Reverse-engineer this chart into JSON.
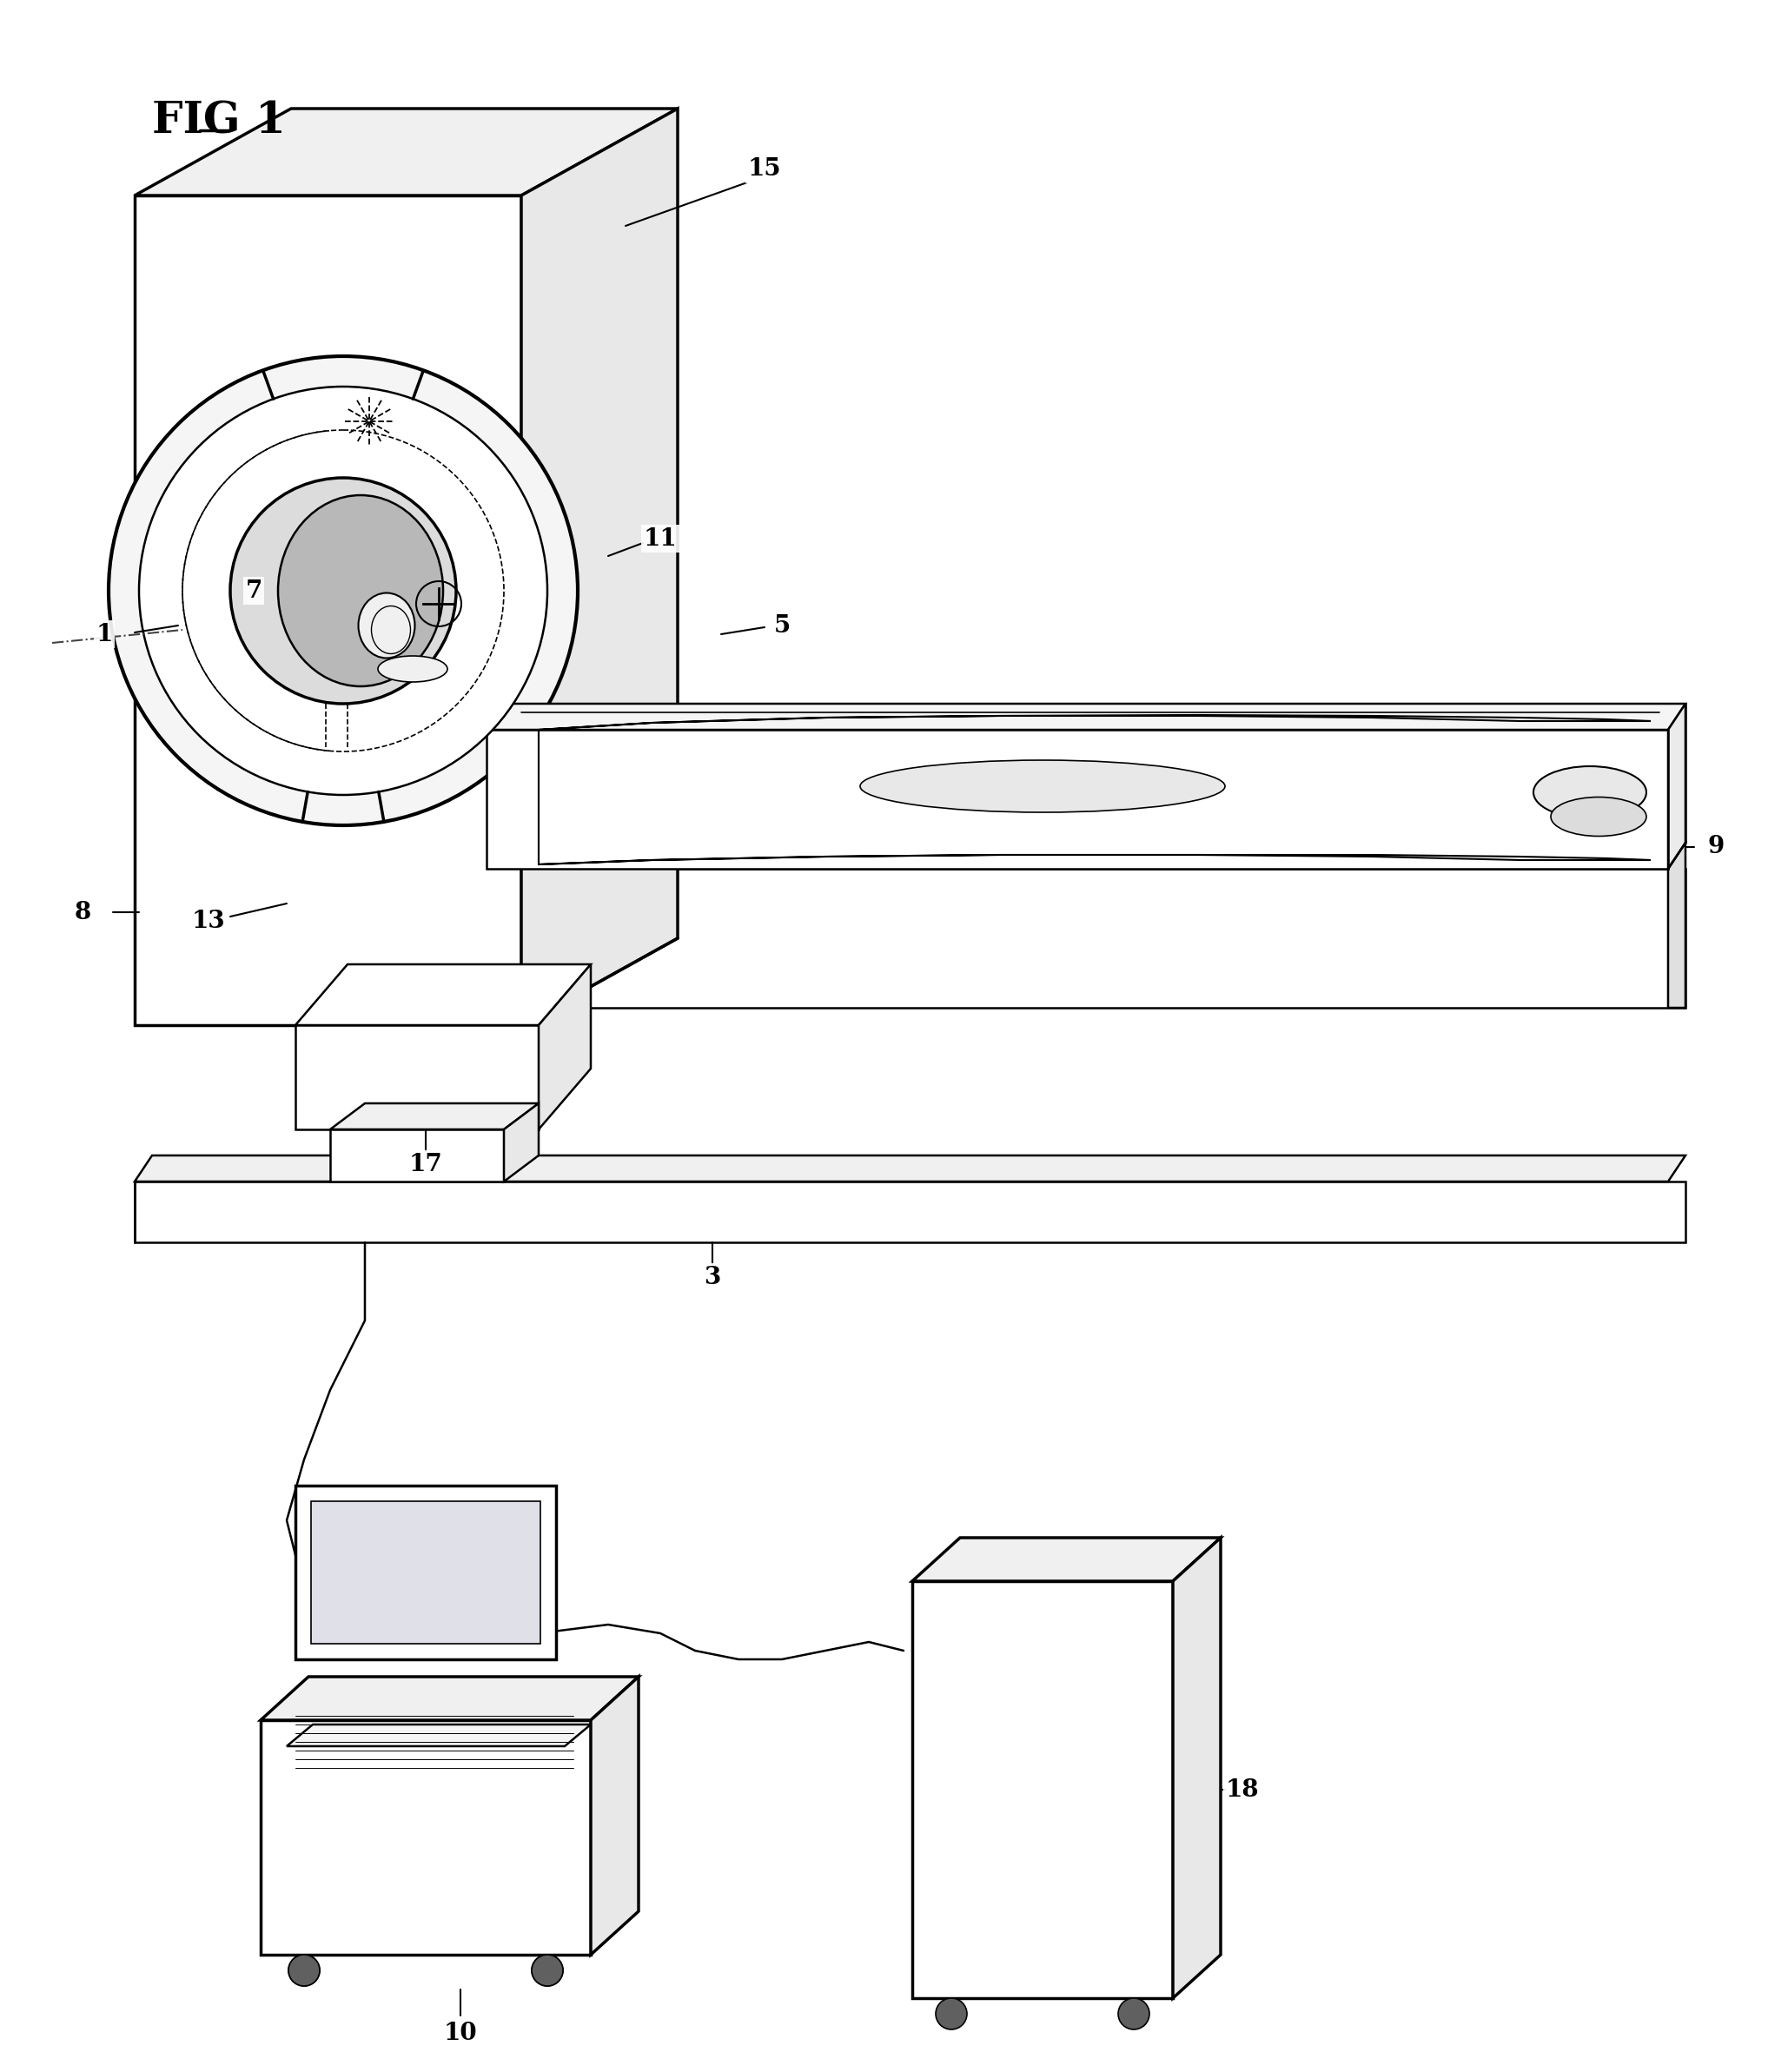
{
  "title": "FIG 1",
  "bg": "#ffffff",
  "lc": "#000000",
  "lw": 1.8,
  "lw_thick": 2.5,
  "lw_thin": 1.2,
  "title_fs": 36,
  "label_fs": 20
}
